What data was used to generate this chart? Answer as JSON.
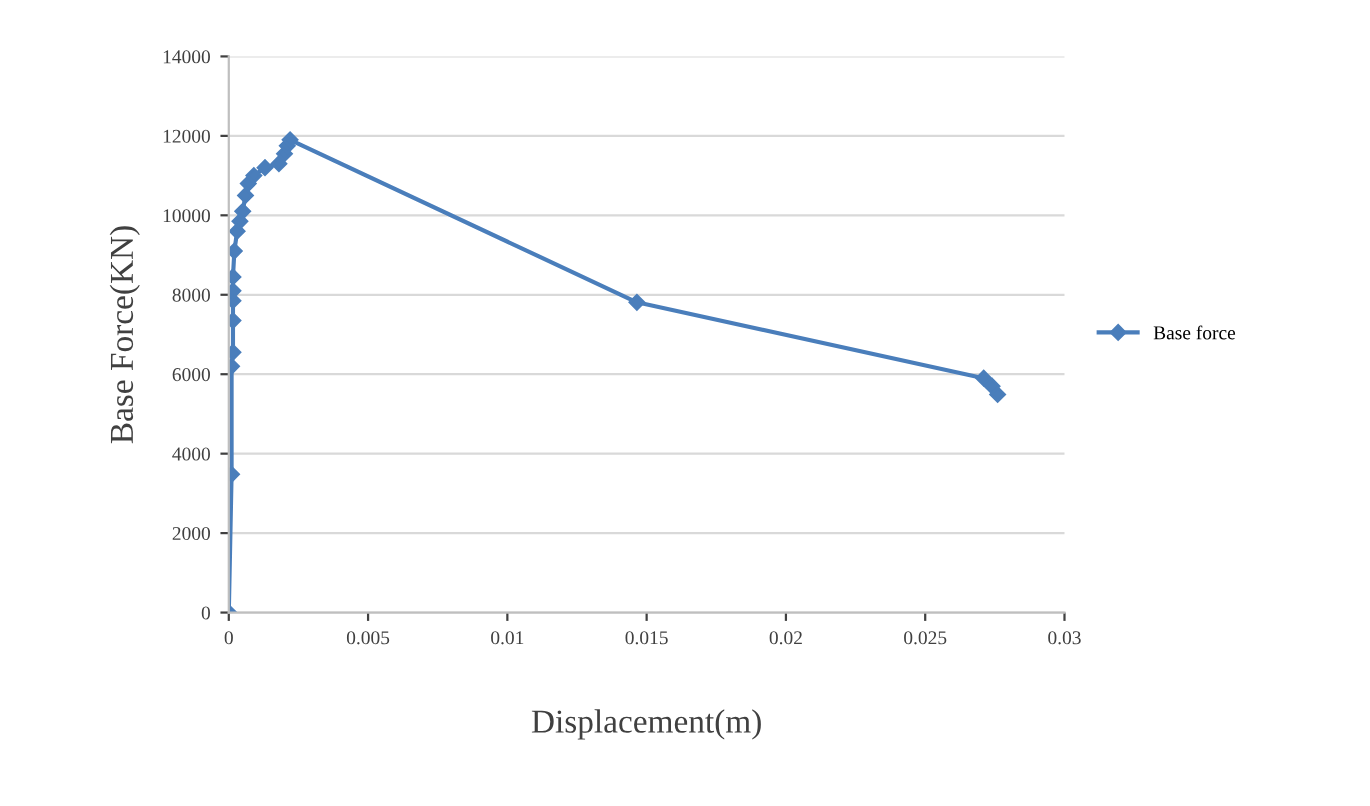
{
  "chart_data": {
    "type": "line",
    "xlabel": "Displacement(m)",
    "ylabel": "Base Force(KN)",
    "series": [
      {
        "name": "Base force",
        "color": "#4a7ebb",
        "x": [
          0,
          0.0001,
          0.0001,
          0.00015,
          0.00015,
          0.00015,
          0.00015,
          0.00015,
          0.0002,
          0.0003,
          0.0004,
          0.0005,
          0.0006,
          0.0007,
          0.0009,
          0.0013,
          0.0018,
          0.002,
          0.0021,
          0.0022,
          0.01465,
          0.0271,
          0.0274,
          0.0276
        ],
        "values": [
          0,
          3480,
          6200,
          6550,
          7350,
          7850,
          8100,
          8450,
          9100,
          9600,
          9850,
          10100,
          10500,
          10800,
          11000,
          11200,
          11300,
          11550,
          11750,
          11900,
          7810,
          5900,
          5700,
          5490
        ]
      }
    ],
    "xlim": [
      0,
      0.03
    ],
    "xticks": [
      0,
      0.005,
      0.01,
      0.015,
      0.02,
      0.025,
      0.03
    ],
    "ylim": [
      0,
      14000
    ],
    "yticks": [
      0,
      2000,
      4000,
      6000,
      8000,
      10000,
      12000,
      14000
    ],
    "grid": "y",
    "legend": "right",
    "marker": "diamond",
    "line_style": "solid"
  }
}
